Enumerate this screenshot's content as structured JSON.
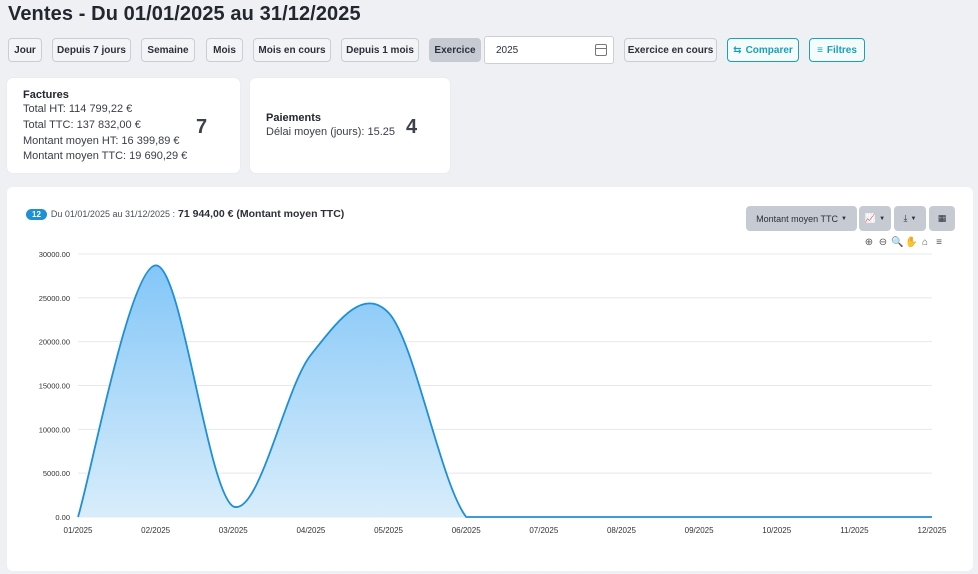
{
  "page": {
    "title": "Ventes - Du 01/01/2025 au 31/12/2025"
  },
  "toolbar": {
    "periods": [
      "Jour",
      "Depuis 7 jours",
      "Semaine",
      "Mois",
      "Mois en cours",
      "Depuis 1 mois",
      "Exercice"
    ],
    "active_period": "Exercice",
    "year_value": "2025",
    "exercice_en_cours": "Exercice en cours",
    "compare_label": "Comparer",
    "filters_label": "Filtres"
  },
  "factures": {
    "title": "Factures",
    "lines": [
      "Total HT: 114 799,22 €",
      "Total TTC: 137 832,00 €",
      "Montant moyen HT: 16 399,89 €",
      "Montant moyen TTC: 19 690,29 €"
    ],
    "count": "7"
  },
  "paiements": {
    "title": "Paiements",
    "lines": [
      "Délai moyen (jours): 15.25"
    ],
    "count": "4"
  },
  "chart_panel": {
    "badge": "12",
    "period_text": "Du 01/01/2025 au 31/12/2025 :",
    "amount_text": "71 944,00 € (Montant moyen TTC)",
    "metric_select": "Montant moyen TTC",
    "icons": [
      "chart-type-icon",
      "download-icon",
      "table-icon",
      "zoom-in-icon",
      "zoom-out-icon",
      "magnifier-icon",
      "pan-icon",
      "home-icon",
      "menu-icon"
    ],
    "accent_color": "#1f8fd6"
  },
  "chart_data": {
    "type": "area",
    "x": [
      "01/2025",
      "02/2025",
      "03/2025",
      "04/2025",
      "05/2025",
      "06/2025",
      "07/2025",
      "08/2025",
      "09/2025",
      "10/2025",
      "11/2025",
      "12/2025"
    ],
    "series": [
      {
        "values": [
          0,
          28700,
          1200,
          18500,
          23300,
          0,
          0,
          0,
          0,
          0,
          0,
          0
        ]
      }
    ],
    "y_ticks": [
      "0.00",
      "5000.00",
      "10000.00",
      "15000.00",
      "20000.00",
      "25000.00",
      "30000.00"
    ],
    "ylim": [
      0,
      30000
    ],
    "grid": true,
    "line_color": "#1f8fd6"
  }
}
